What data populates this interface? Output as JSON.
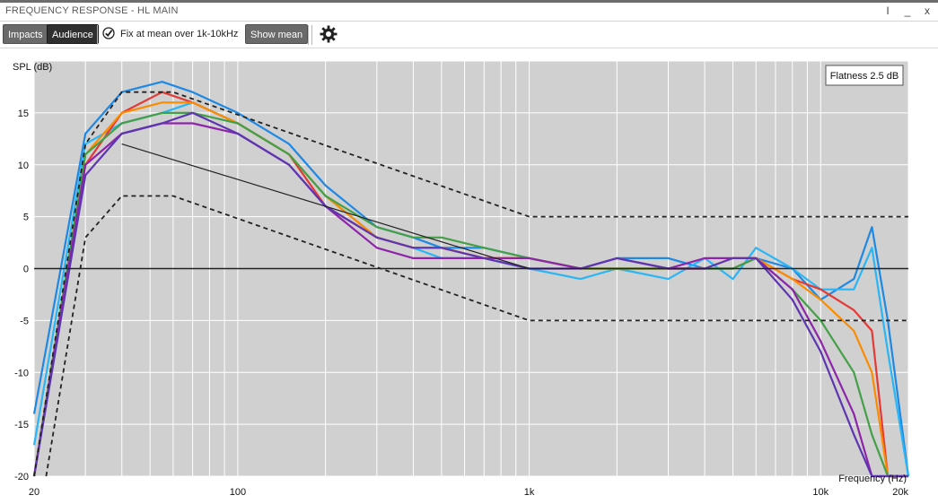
{
  "window": {
    "title": "FREQUENCY RESPONSE - HL MAIN",
    "buttons": {
      "pin": "I",
      "minimize": "_",
      "close": "x"
    }
  },
  "toolbar": {
    "impacts_label": "Impacts",
    "audience_label": "Audience",
    "fix_label": "Fix at mean over 1k-10kHz",
    "fix_checked": true,
    "show_mean_label": "Show mean"
  },
  "chart_data": {
    "type": "line",
    "xscale": "log",
    "xlim": [
      20,
      20000
    ],
    "ylim": [
      -20,
      20
    ],
    "ylabel": "SPL (dB)",
    "xlabel": "Frequency (Hz)",
    "xticks": [
      {
        "v": 20,
        "label": "20"
      },
      {
        "v": 100,
        "label": "100"
      },
      {
        "v": 1000,
        "label": "1k"
      },
      {
        "v": 10000,
        "label": "10k"
      },
      {
        "v": 20000,
        "label": "20k"
      }
    ],
    "yticks": [
      15,
      10,
      5,
      0,
      -5,
      -10,
      -15,
      -20
    ],
    "grid": true,
    "annotation": "Flatness 2.5 dB",
    "annotation_position": "top-right",
    "reference_line": {
      "x": [
        40,
        1000
      ],
      "y": [
        12,
        0
      ]
    },
    "zero_line": 0,
    "tolerance_upper": {
      "x": [
        20,
        30,
        40,
        60,
        1000,
        20000
      ],
      "y": [
        -20,
        12,
        17,
        17,
        5,
        5
      ]
    },
    "tolerance_lower": {
      "x": [
        22,
        30,
        40,
        60,
        1000,
        20000
      ],
      "y": [
        -20,
        3,
        7,
        7,
        -5,
        -5
      ]
    },
    "series": [
      {
        "color": "#1e88e5",
        "x": [
          20,
          30,
          40,
          55,
          70,
          100,
          150,
          200,
          300,
          400,
          500,
          700,
          1000,
          1500,
          2000,
          3000,
          4000,
          5000,
          6000,
          8000,
          10000,
          13000,
          15000,
          17000,
          20000
        ],
        "y": [
          -14,
          13,
          17,
          18,
          17,
          15,
          12,
          8,
          4,
          3,
          2,
          2,
          1,
          0,
          1,
          1,
          0,
          0,
          1,
          0,
          -3,
          -1,
          4,
          -5,
          -20
        ]
      },
      {
        "color": "#29b6f6",
        "x": [
          20,
          30,
          40,
          55,
          70,
          100,
          150,
          200,
          300,
          400,
          500,
          700,
          1000,
          1500,
          2000,
          3000,
          4000,
          5000,
          6000,
          8000,
          10000,
          13000,
          15000,
          17000,
          20000
        ],
        "y": [
          -17,
          12,
          14,
          15,
          16,
          14,
          11,
          7,
          3,
          2,
          1,
          1,
          0,
          -1,
          0,
          -1,
          1,
          -1,
          2,
          0,
          -2,
          -2,
          2,
          -8,
          -20
        ]
      },
      {
        "color": "#e53935",
        "x": [
          20,
          30,
          40,
          55,
          70,
          100,
          150,
          200,
          300,
          400,
          500,
          700,
          1000,
          1500,
          2000,
          3000,
          4000,
          5000,
          6000,
          8000,
          10000,
          13000,
          15000,
          17000,
          20000
        ],
        "y": [
          -20,
          10,
          15,
          17,
          16,
          14,
          11,
          6,
          3,
          2,
          2,
          1,
          1,
          0,
          0,
          0,
          0,
          0,
          1,
          -1,
          -2,
          -4,
          -6,
          -20,
          -20
        ]
      },
      {
        "color": "#fb8c00",
        "x": [
          20,
          30,
          40,
          55,
          70,
          100,
          150,
          200,
          300,
          400,
          500,
          700,
          1000,
          1500,
          2000,
          3000,
          4000,
          5000,
          6000,
          8000,
          10000,
          13000,
          15000,
          17000,
          20000
        ],
        "y": [
          -20,
          11,
          15,
          16,
          16,
          14,
          11,
          7,
          3,
          2,
          2,
          1,
          1,
          0,
          0,
          0,
          0,
          1,
          1,
          -1,
          -3,
          -6,
          -10,
          -20,
          -20
        ]
      },
      {
        "color": "#43a047",
        "x": [
          20,
          30,
          40,
          55,
          70,
          100,
          150,
          200,
          300,
          400,
          500,
          700,
          1000,
          1500,
          2000,
          3000,
          4000,
          5000,
          6000,
          8000,
          10000,
          13000,
          15000,
          17000,
          20000
        ],
        "y": [
          -20,
          11,
          14,
          15,
          15,
          14,
          11,
          7,
          4,
          3,
          3,
          2,
          1,
          0,
          0,
          0,
          0,
          0,
          1,
          -2,
          -5,
          -10,
          -16,
          -20,
          -20
        ]
      },
      {
        "color": "#8e24aa",
        "x": [
          20,
          30,
          40,
          55,
          70,
          100,
          150,
          200,
          300,
          400,
          500,
          700,
          1000,
          1500,
          2000,
          3000,
          4000,
          5000,
          6000,
          8000,
          10000,
          13000,
          15000,
          17000,
          20000
        ],
        "y": [
          -20,
          10,
          13,
          14,
          14,
          13,
          10,
          6,
          2,
          1,
          1,
          1,
          1,
          0,
          1,
          0,
          1,
          1,
          1,
          -2,
          -7,
          -14,
          -20,
          -20,
          -20
        ]
      },
      {
        "color": "#5e35b1",
        "x": [
          20,
          30,
          40,
          55,
          70,
          100,
          150,
          200,
          300,
          400,
          500,
          700,
          1000,
          1500,
          2000,
          3000,
          4000,
          5000,
          6000,
          8000,
          10000,
          13000,
          15000,
          17000,
          20000
        ],
        "y": [
          -20,
          9,
          13,
          14,
          15,
          13,
          10,
          6,
          3,
          2,
          2,
          1,
          0,
          0,
          1,
          0,
          0,
          1,
          1,
          -3,
          -8,
          -16,
          -20,
          -20,
          -20
        ]
      }
    ]
  }
}
